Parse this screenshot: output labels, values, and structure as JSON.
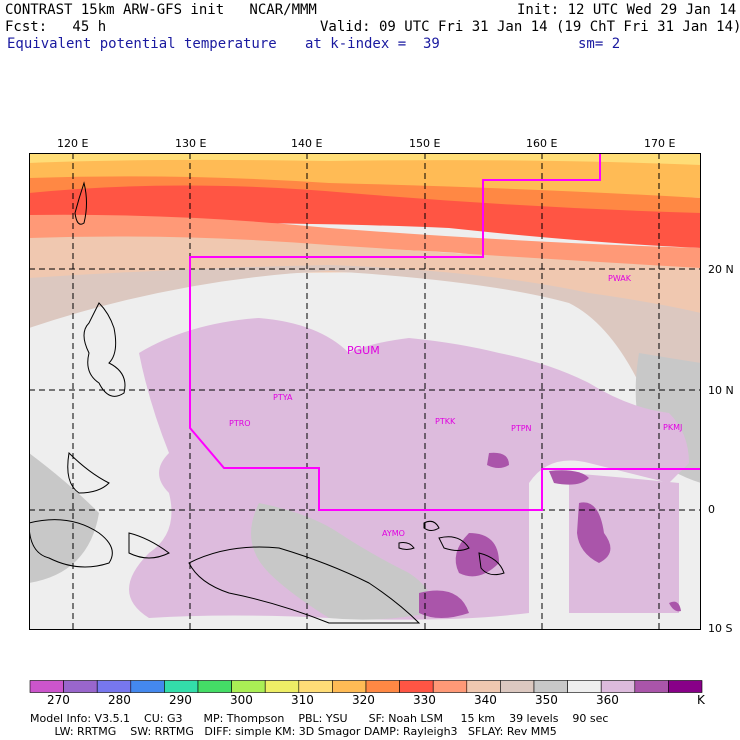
{
  "header": {
    "line1_left": "CONTRAST 15km ARW-GFS init   NCAR/MMM",
    "line1_right": "Init: 12 UTC Wed 29 Jan 14",
    "line2_left": "Fcst:   45 h",
    "line2_right": "Valid: 09 UTC Fri 31 Jan 14 (19 ChT Fri 31 Jan 14)",
    "line3_field": "Equivalent potential temperature",
    "line3_level": "at k-index =  39",
    "line3_smooth": "sm= 2"
  },
  "map": {
    "lon_labels": [
      "120 E",
      "130 E",
      "140 E",
      "150 E",
      "160 E",
      "170 E"
    ],
    "lat_labels": [
      "20 N",
      "10 N",
      "0",
      "10 S"
    ],
    "stations": [
      {
        "id": "PGUM",
        "big": true
      },
      {
        "id": "PTYA"
      },
      {
        "id": "PTRO"
      },
      {
        "id": "PTKK"
      },
      {
        "id": "PTPN"
      },
      {
        "id": "PKMJ"
      },
      {
        "id": "PWAK"
      },
      {
        "id": "AYMO"
      }
    ],
    "boundary_color": "#ff00ff"
  },
  "colorbar": {
    "labels": [
      "270",
      "280",
      "290",
      "300",
      "310",
      "320",
      "330",
      "340",
      "350",
      "360"
    ],
    "unit": "K",
    "colors": [
      "#cc55cc",
      "#9966cc",
      "#7777ee",
      "#4488ee",
      "#33ddaa",
      "#44dd66",
      "#aaee55",
      "#eeee66",
      "#ffdd77",
      "#ffbb55",
      "#ff8844",
      "#ff5544",
      "#ff9977",
      "#f0c8b0",
      "#dcc8c0",
      "#c8c8c8",
      "#eeeeee",
      "#ddbbdd",
      "#aa55aa",
      "#880088"
    ]
  },
  "info": {
    "line1": "Model Info: V3.5.1    CU: G3      MP: Thompson    PBL: YSU      SF: Noah LSM     15 km    39 levels    90 sec",
    "line2": "       LW: RRTMG    SW: RRTMG   DIFF: simple KM: 3D Smagor DAMP: Rayleigh3   SFLAY: Rev MM5"
  }
}
